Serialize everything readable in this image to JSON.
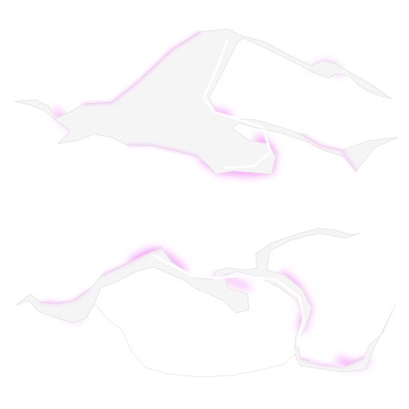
{
  "scene": {
    "description_colors": {
      "background": "#ffffff",
      "glow": "#e64df0",
      "glow_soft": "#f3a6f7",
      "ribbon_fill": "#f4f4f4",
      "ribbon_edge": "#d8d8d8"
    },
    "objects": [
      {
        "name": "upper-light-streak"
      },
      {
        "name": "lower-light-streak"
      }
    ]
  }
}
